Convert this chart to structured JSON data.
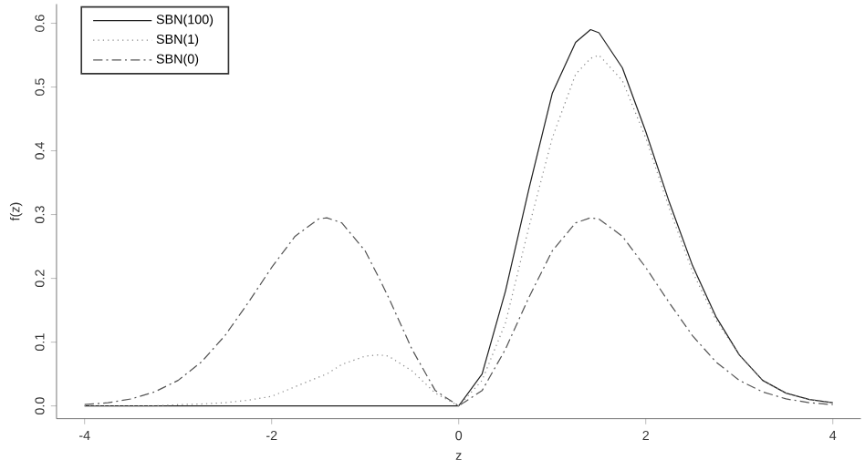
{
  "chart_data": {
    "type": "line",
    "xlabel": "z",
    "ylabel": "f(z)",
    "xlim": [
      -4.3,
      4.3
    ],
    "ylim": [
      -0.02,
      0.63
    ],
    "xticks": [
      -4,
      -2,
      0,
      2,
      4
    ],
    "yticks": [
      {
        "value": 0,
        "label": "0.0"
      },
      0.1,
      0.2,
      0.3,
      0.4,
      0.5,
      0.6
    ],
    "grid": false,
    "legend": "top left",
    "marker": "none",
    "x": [
      -4,
      -3.75,
      -3.5,
      -3.25,
      -3,
      -2.75,
      -2.5,
      -2.25,
      -2,
      -1.75,
      -1.5,
      -1.41,
      -1.25,
      -1,
      -0.85,
      -0.75,
      -0.5,
      -0.25,
      0,
      0.25,
      0.5,
      0.75,
      1,
      1.25,
      1.41,
      1.5,
      1.75,
      2,
      2.25,
      2.5,
      2.75,
      3,
      3.25,
      3.5,
      3.75,
      4
    ],
    "series": [
      {
        "name": "SBN(100)",
        "color": "#222222",
        "line_style": "solid",
        "values": [
          0,
          0,
          0,
          0,
          0,
          0,
          0,
          0,
          0,
          0,
          0,
          0,
          0,
          0,
          0,
          0,
          0,
          0,
          0,
          0.05,
          0.18,
          0.34,
          0.49,
          0.57,
          0.59,
          0.585,
          0.53,
          0.43,
          0.32,
          0.22,
          0.14,
          0.08,
          0.04,
          0.02,
          0.01,
          0.005
        ]
      },
      {
        "name": "SBN(1)",
        "color": "#888888",
        "line_style": "dotted",
        "values": [
          0,
          0,
          0,
          0,
          0.002,
          0.003,
          0.005,
          0.009,
          0.015,
          0.03,
          0.045,
          0.05,
          0.065,
          0.078,
          0.08,
          0.078,
          0.055,
          0.02,
          0,
          0.04,
          0.13,
          0.28,
          0.42,
          0.52,
          0.545,
          0.55,
          0.51,
          0.42,
          0.31,
          0.21,
          0.135,
          0.08,
          0.04,
          0.02,
          0.01,
          0.005
        ]
      },
      {
        "name": "SBN(0)",
        "color": "#555555",
        "line_style": "dashed",
        "values": [
          0.002,
          0.005,
          0.011,
          0.022,
          0.04,
          0.069,
          0.11,
          0.162,
          0.217,
          0.266,
          0.293,
          0.295,
          0.287,
          0.243,
          0.2,
          0.17,
          0.089,
          0.024,
          0,
          0.024,
          0.089,
          0.17,
          0.243,
          0.287,
          0.295,
          0.293,
          0.266,
          0.217,
          0.162,
          0.11,
          0.069,
          0.04,
          0.022,
          0.011,
          0.005,
          0.002
        ]
      }
    ]
  }
}
